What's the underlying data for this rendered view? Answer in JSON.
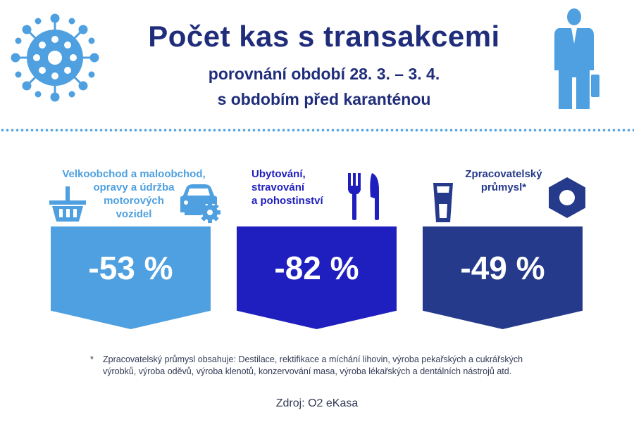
{
  "header": {
    "title": "Počet kas s transakcemi",
    "subtitle_line1": "porovnání období 28. 3. – 3. 4.",
    "subtitle_line2": "s obdobím před karanténou"
  },
  "colors": {
    "title": "#1f2d7a",
    "light_blue": "#4fa0e0",
    "blue": "#1f1fbf",
    "dark_blue": "#253a8a"
  },
  "categories": [
    {
      "label_lines": [
        "Velkoobchod a maloobchod,",
        "opravy a údržba",
        "motorových",
        "vozidel"
      ],
      "value": "-53 %",
      "icons": [
        "basket-icon",
        "car-gear-icon"
      ]
    },
    {
      "label_lines": [
        "Ubytování,",
        "stravování",
        "a pohostinství"
      ],
      "value": "-82 %",
      "icons": [
        "fork-knife-icon"
      ]
    },
    {
      "label_lines": [
        "Zpracovatelský",
        "průmysl*"
      ],
      "value": "-49 %",
      "icons": [
        "glass-icon",
        "hex-nut-icon"
      ]
    }
  ],
  "footnote": {
    "marker": "*",
    "text": "Zpracovatelský průmysl obsahuje: Destilace, rektifikace a míchání lihovin, výroba pekařských a cukrářských výrobků, výroba oděvů, výroba klenotů, konzervování masa, výroba lékařských a dentálních nástrojů atd."
  },
  "source": "Zdroj: O2 eKasa"
}
